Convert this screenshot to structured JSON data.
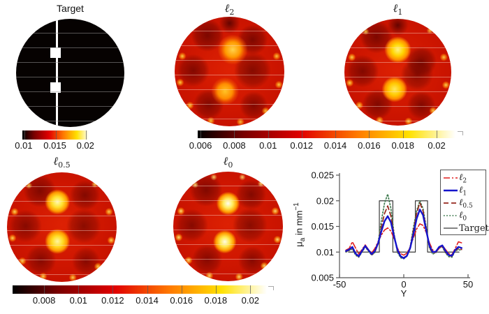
{
  "colors": {
    "background": "#ffffff",
    "heat_base_red": "#cd1500",
    "heat_dark": "#6e0400",
    "heat_orange": "#ff9a00",
    "heat_yellow": "#ffe100",
    "heat_white": "#ffffff",
    "target_black": "#060201",
    "inclusion_white": "#ffffff",
    "axis": "#555555",
    "legend_border": "#555555"
  },
  "panels": {
    "target": {
      "title": "Target"
    },
    "l2": {
      "symbol": "ℓ",
      "sub": "2"
    },
    "l1": {
      "symbol": "ℓ",
      "sub": "1"
    },
    "l05": {
      "symbol": "ℓ",
      "sub": "0.5"
    },
    "l0": {
      "symbol": "ℓ",
      "sub": "0"
    }
  },
  "colorbars": {
    "target_ticks": [
      "0.01",
      "0.015",
      "0.02"
    ],
    "row1_ticks": [
      "0.006",
      "0.008",
      "0.01",
      "0.012",
      "0.014",
      "0.016",
      "0.018",
      "0.02"
    ],
    "row2_ticks": [
      "0.008",
      "0.01",
      "0.012",
      "0.014",
      "0.016",
      "0.018",
      "0.02"
    ]
  },
  "chart_data": {
    "type": "line",
    "title": "",
    "xlabel": "Y",
    "ylabel": "μ_a in mm^-1",
    "ylabel_parts": {
      "base": "μ",
      "sub": "a",
      "mid": " in mm",
      "sup": "−1"
    },
    "xlim": [
      -50,
      50
    ],
    "ylim": [
      0.005,
      0.025
    ],
    "xticks": [
      -50,
      0,
      50
    ],
    "yticks": [
      0.005,
      0.01,
      0.015,
      0.02,
      0.025
    ],
    "grid": false,
    "legend_position": "top-right",
    "x": [
      -45,
      -42.5,
      -40,
      -37.5,
      -35,
      -32.5,
      -30,
      -27.5,
      -25,
      -22.5,
      -20,
      -17.5,
      -15,
      -12.5,
      -10,
      -7.5,
      -5,
      -2.5,
      0,
      2.5,
      5,
      7.5,
      10,
      12.5,
      15,
      17.5,
      20,
      22.5,
      25,
      27.5,
      30,
      32.5,
      35,
      37.5,
      40,
      42.5,
      45
    ],
    "series": [
      {
        "name": "l2",
        "label": {
          "symbol": "ℓ",
          "sub": "2"
        },
        "color": "#e01d1d",
        "style": "dashdot",
        "width": 1.6,
        "z": 3,
        "y": [
          0.0104,
          0.0107,
          0.012,
          0.0108,
          0.0096,
          0.0105,
          0.0114,
          0.0105,
          0.0098,
          0.0107,
          0.012,
          0.0133,
          0.0143,
          0.0147,
          0.0141,
          0.0126,
          0.0108,
          0.0097,
          0.0094,
          0.0098,
          0.011,
          0.0128,
          0.0145,
          0.0155,
          0.0152,
          0.0138,
          0.0118,
          0.0104,
          0.01,
          0.0107,
          0.0113,
          0.0105,
          0.0097,
          0.0095,
          0.0107,
          0.012,
          0.0118
        ]
      },
      {
        "name": "l1",
        "label": {
          "symbol": "ℓ",
          "sub": "1"
        },
        "color": "#1414cc",
        "style": "solid",
        "width": 2.4,
        "z": 4,
        "y": [
          0.0102,
          0.0105,
          0.011,
          0.0097,
          0.0092,
          0.0102,
          0.0112,
          0.0104,
          0.0096,
          0.0102,
          0.0117,
          0.014,
          0.016,
          0.017,
          0.0158,
          0.013,
          0.0105,
          0.0092,
          0.0088,
          0.0093,
          0.0108,
          0.0135,
          0.0165,
          0.0183,
          0.0172,
          0.0142,
          0.0112,
          0.01,
          0.0101,
          0.011,
          0.0113,
          0.0102,
          0.0094,
          0.0093,
          0.0104,
          0.011,
          0.0108
        ]
      },
      {
        "name": "l0.5",
        "label": {
          "symbol": "ℓ",
          "sub": "0.5"
        },
        "color": "#96281e",
        "style": "dashed",
        "width": 1.7,
        "z": 2,
        "y": [
          0.0101,
          0.0104,
          0.0108,
          0.0096,
          0.0091,
          0.0101,
          0.0111,
          0.0103,
          0.0095,
          0.01,
          0.0116,
          0.0148,
          0.0175,
          0.019,
          0.017,
          0.0132,
          0.0103,
          0.0091,
          0.0089,
          0.0094,
          0.011,
          0.0142,
          0.0175,
          0.0196,
          0.018,
          0.0145,
          0.011,
          0.0098,
          0.01,
          0.0109,
          0.0111,
          0.01,
          0.0093,
          0.0092,
          0.0103,
          0.0107,
          0.0105
        ]
      },
      {
        "name": "l0",
        "label": {
          "symbol": "ℓ",
          "sub": "0"
        },
        "color": "#3e7a4e",
        "style": "dotted",
        "width": 1.7,
        "z": 1,
        "y": [
          0.01,
          0.0103,
          0.0106,
          0.0094,
          0.009,
          0.01,
          0.011,
          0.0102,
          0.0094,
          0.0099,
          0.0118,
          0.016,
          0.0195,
          0.0213,
          0.0185,
          0.0135,
          0.01,
          0.0089,
          0.0087,
          0.0092,
          0.011,
          0.0148,
          0.018,
          0.02,
          0.0185,
          0.0148,
          0.0108,
          0.0096,
          0.0099,
          0.0108,
          0.011,
          0.0098,
          0.0091,
          0.009,
          0.0102,
          0.0105,
          0.0103
        ]
      },
      {
        "name": "Target",
        "label": {
          "text": "Target"
        },
        "color": "#3a3a3a",
        "style": "solid",
        "width": 1.2,
        "z": 0,
        "x": [
          -43,
          -19,
          -19,
          -8.5,
          -8.5,
          9,
          9,
          18.5,
          18.5,
          43
        ],
        "y": [
          0.01,
          0.01,
          0.02,
          0.02,
          0.01,
          0.01,
          0.02,
          0.02,
          0.01,
          0.01
        ]
      }
    ]
  }
}
